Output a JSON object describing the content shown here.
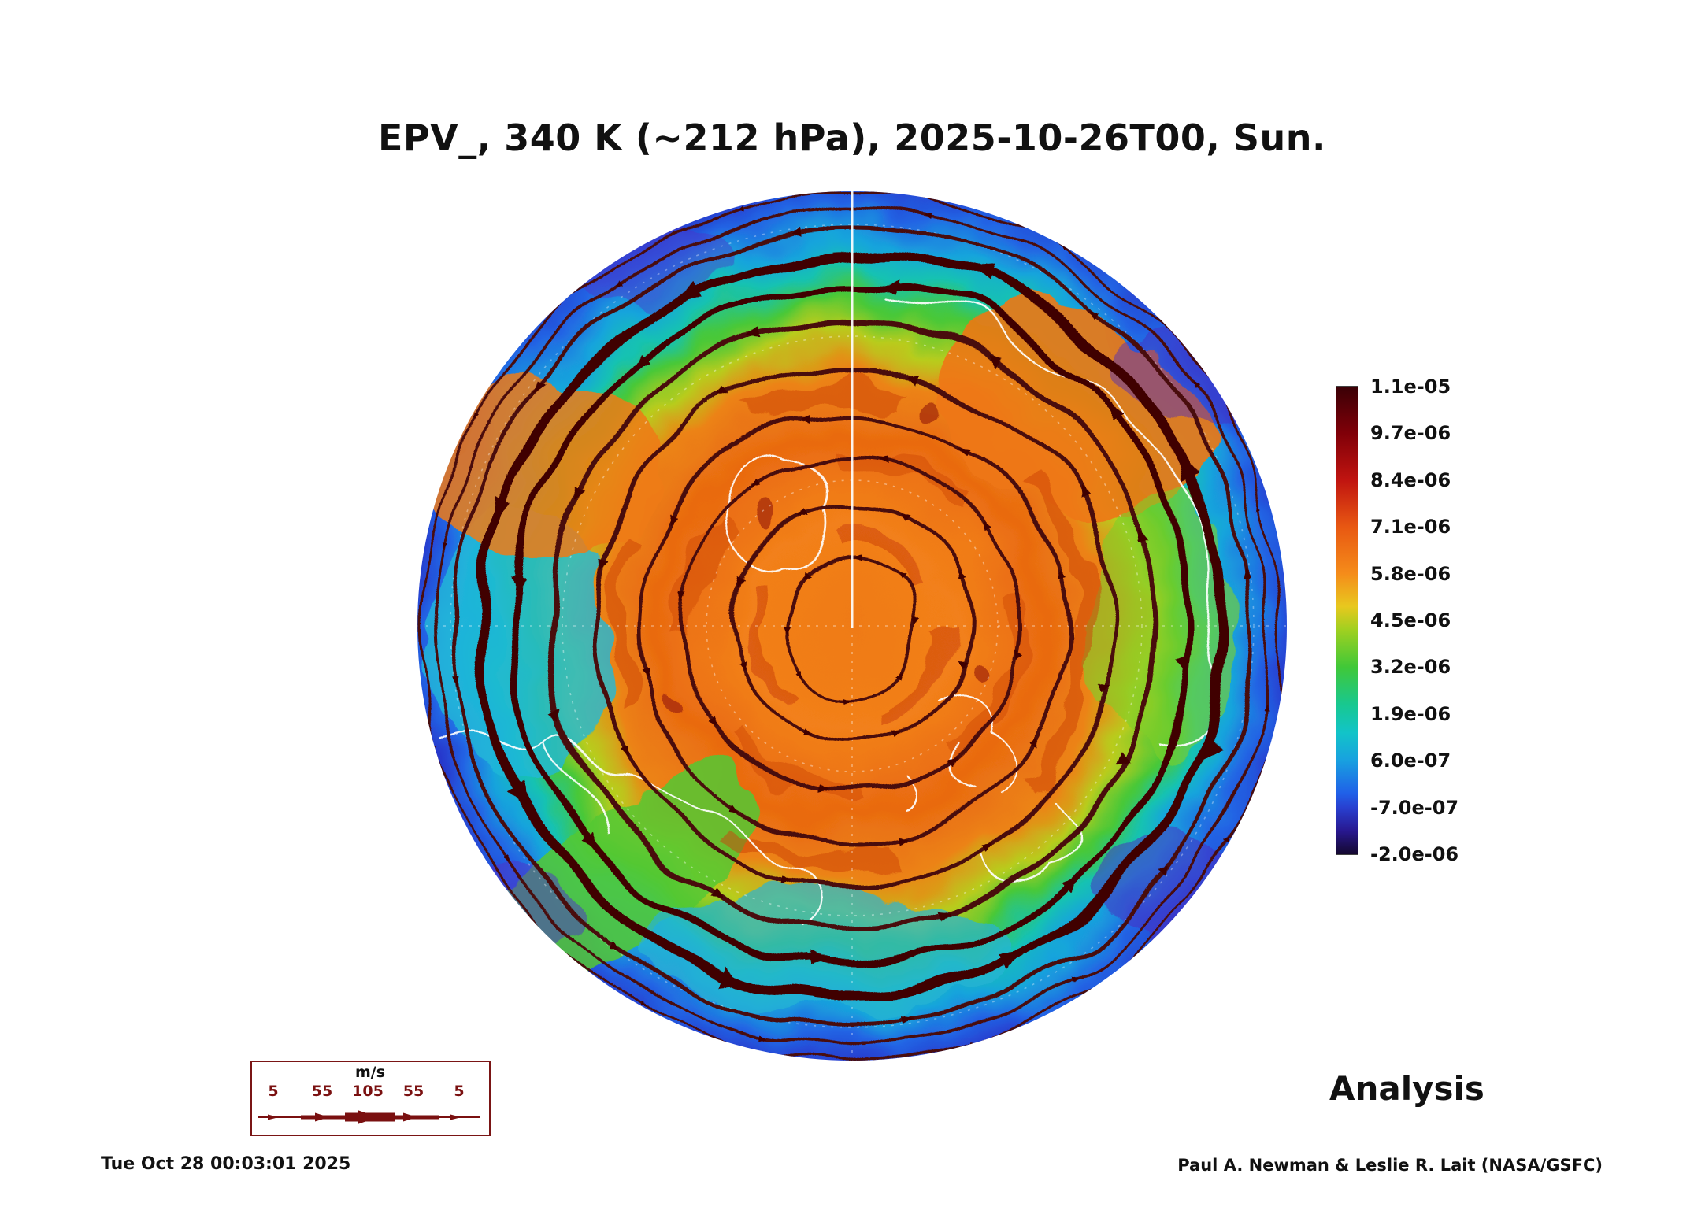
{
  "title": "EPV_, 340 K (~212 hPa), 2025-10-26T00, Sun.",
  "colorbar": {
    "labels": [
      "1.1e-05",
      "9.7e-06",
      "8.4e-06",
      "7.1e-06",
      "5.8e-06",
      "4.5e-06",
      "3.2e-06",
      "1.9e-06",
      "6.0e-07",
      "-7.0e-07",
      "-2.0e-06"
    ],
    "top_color": "#3a0006",
    "bottom_color": "#14082e"
  },
  "wind_legend": {
    "units": "m/s",
    "ticks": [
      "5",
      "55",
      "105",
      "55",
      "5"
    ]
  },
  "footer": {
    "timestamp": "Tue Oct 28 00:03:01 2025",
    "analysis_label": "Analysis",
    "credit": "Paul A. Newman & Leslie R. Lait (NASA/GSFC)"
  },
  "chart_data": {
    "type": "heatmap",
    "subtype": "north-polar-stereographic-map",
    "title": "EPV_, 340 K (~212 hPa), 2025-10-26T00, Sun.",
    "field": "Ertel potential vorticity (EPV) shaded, wind streamlines overlaid",
    "level": "340 K (~212 hPa)",
    "valid_time": "2025-10-26T00",
    "run_label": "Analysis",
    "colorbar": {
      "orientation": "vertical-right",
      "ticks": [
        1.1e-05,
        9.7e-06,
        8.4e-06,
        7.1e-06,
        5.8e-06,
        4.5e-06,
        3.2e-06,
        1.9e-06,
        6e-07,
        -7e-07,
        -2e-06
      ]
    },
    "wind_scale_ms": [
      5,
      55,
      105,
      55,
      5
    ],
    "pattern_summary": [
      {
        "region": "polar cap (disk center)",
        "epv_approx": 7.5e-06,
        "color": "orange-red with dark red filaments"
      },
      {
        "region": "transition ring around cap",
        "epv_approx": 3.5e-06,
        "color": "yellow-green / green"
      },
      {
        "region": "outer annulus to rim",
        "epv_approx": 2e-07,
        "color": "cyan to blue with dark purple mottling"
      },
      {
        "region": "orange/green boundary",
        "feature": "thick dark maroon circumpolar jet streamlines with arrowheads"
      }
    ],
    "overlays": [
      "white coastlines",
      "white dashed graticule",
      "maroon wind streamlines"
    ]
  }
}
